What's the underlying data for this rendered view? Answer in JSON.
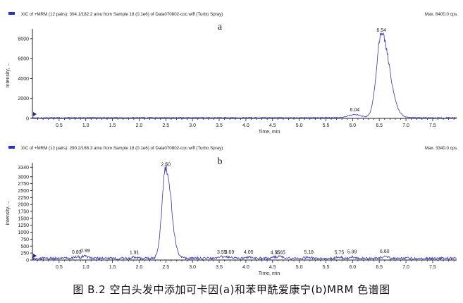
{
  "figure_caption": "图 B.2  空白头发中添加可卡因(a)和苯甲酰爱康宁(b)MRM 色谱图",
  "colors": {
    "trace": "#3333bb",
    "axis": "#222222",
    "legend_marker": "#2233cc",
    "text": "#222222"
  },
  "chart_data": [
    {
      "type": "line",
      "panel_letter": "a",
      "header": "XIC of +MRM (12 pairs): 304.1/182.2 amu from Sample 18 (0.1e6) of Data070802-coc.wiff (Turbo Spray)",
      "max_label": "Max. 8400.0 cps.",
      "xlabel": "Time, min",
      "ylabel": "Intensity, ...",
      "xlim": [
        0,
        7.95
      ],
      "ylim": [
        0,
        8700
      ],
      "x_ticks": [
        0.5,
        1.0,
        1.5,
        2.0,
        2.5,
        3.0,
        3.5,
        4.0,
        4.5,
        5.0,
        5.5,
        6.0,
        6.5,
        7.0,
        7.5
      ],
      "x_tick_labels": [
        "0.5",
        "1.0",
        "1.5",
        "2.0",
        "2.5",
        "3.0",
        "3.5",
        "4.0",
        "4.5",
        "5.0",
        "5.5",
        "6.0",
        "6.5",
        "7.0",
        "7.5"
      ],
      "y_ticks": [
        0,
        2000,
        4000,
        6000,
        8000
      ],
      "y_tick_labels": [
        "0",
        "2000",
        "4000",
        "6000",
        "8000"
      ],
      "baseline_level": 70,
      "noise_level": 40,
      "peaks": [
        {
          "rt": 6.54,
          "height": 8400,
          "width_left": 0.09,
          "width_right": 0.15
        },
        {
          "rt": 6.04,
          "height": 300,
          "width_left": 0.12,
          "width_right": 0.12
        }
      ],
      "annotations": [
        {
          "rt": 6.54,
          "label": "6.54",
          "y": 8400
        },
        {
          "rt": 6.04,
          "label": "6.04",
          "y": 420
        }
      ]
    },
    {
      "type": "line",
      "panel_letter": "b",
      "header": "XIC of +MRM (12 pairs): 290.2/168.3 amu from Sample 18 (0.1e6) of Data070802-coc.wiff (Turbo Spray)",
      "max_label": "Max. 3340.0 cps.",
      "xlabel": "Time, min",
      "ylabel": "Intensity, ...",
      "xlim": [
        0,
        7.95
      ],
      "ylim": [
        0,
        3400
      ],
      "x_ticks": [
        0.5,
        1.0,
        1.5,
        2.0,
        2.5,
        3.0,
        3.5,
        4.0,
        4.5,
        5.0,
        5.5,
        6.0,
        6.5,
        7.0,
        7.5
      ],
      "x_tick_labels": [
        "0.5",
        "1.0",
        "1.5",
        "2.0",
        "2.5",
        "3.0",
        "3.5",
        "4.0",
        "4.5",
        "5.0",
        "5.5",
        "6.0",
        "6.5",
        "7.0",
        "7.5"
      ],
      "y_ticks": [
        0,
        250,
        500,
        750,
        1000,
        1250,
        1500,
        1750,
        2000,
        2250,
        2500,
        2750,
        3000,
        3340
      ],
      "y_tick_labels": [
        "0",
        "250",
        "500",
        "750",
        "1000",
        "1250",
        "1500",
        "1750",
        "2000",
        "2250",
        "2500",
        "2750",
        "3000",
        "3340"
      ],
      "baseline_level": 60,
      "noise_level": 45,
      "peaks": [
        {
          "rt": 2.5,
          "height": 3280,
          "width_left": 0.07,
          "width_right": 0.1
        },
        {
          "rt": 0.83,
          "height": 60,
          "width_left": 0.05,
          "width_right": 0.05
        },
        {
          "rt": 0.99,
          "height": 90,
          "width_left": 0.05,
          "width_right": 0.05
        },
        {
          "rt": 1.91,
          "height": 40,
          "width_left": 0.04,
          "width_right": 0.04
        },
        {
          "rt": 3.55,
          "height": 50,
          "width_left": 0.05,
          "width_right": 0.05
        },
        {
          "rt": 3.69,
          "height": 50,
          "width_left": 0.05,
          "width_right": 0.05
        },
        {
          "rt": 4.05,
          "height": 50,
          "width_left": 0.05,
          "width_right": 0.05
        },
        {
          "rt": 4.55,
          "height": 45,
          "width_left": 0.05,
          "width_right": 0.05
        },
        {
          "rt": 4.65,
          "height": 45,
          "width_left": 0.05,
          "width_right": 0.05
        },
        {
          "rt": 5.18,
          "height": 50,
          "width_left": 0.05,
          "width_right": 0.05
        },
        {
          "rt": 5.75,
          "height": 45,
          "width_left": 0.05,
          "width_right": 0.05
        },
        {
          "rt": 5.99,
          "height": 60,
          "width_left": 0.05,
          "width_right": 0.05
        },
        {
          "rt": 6.6,
          "height": 70,
          "width_left": 0.05,
          "width_right": 0.05
        }
      ],
      "annotations": [
        {
          "rt": 2.5,
          "label": "2.50",
          "y": 3280
        },
        {
          "rt": 0.83,
          "label": "0.83",
          "y": 130
        },
        {
          "rt": 0.99,
          "label": "0.99",
          "y": 180
        },
        {
          "rt": 1.91,
          "label": "1.91",
          "y": 110
        },
        {
          "rt": 3.55,
          "label": "3.55",
          "y": 130
        },
        {
          "rt": 3.69,
          "label": "3.69",
          "y": 130
        },
        {
          "rt": 4.05,
          "label": "4.05",
          "y": 130
        },
        {
          "rt": 4.55,
          "label": "4.55",
          "y": 120
        },
        {
          "rt": 4.65,
          "label": "4.65",
          "y": 120
        },
        {
          "rt": 5.18,
          "label": "5.18",
          "y": 130
        },
        {
          "rt": 5.75,
          "label": "5.75",
          "y": 120
        },
        {
          "rt": 5.99,
          "label": "5.99",
          "y": 140
        },
        {
          "rt": 6.6,
          "label": "6.60",
          "y": 150
        }
      ]
    }
  ]
}
